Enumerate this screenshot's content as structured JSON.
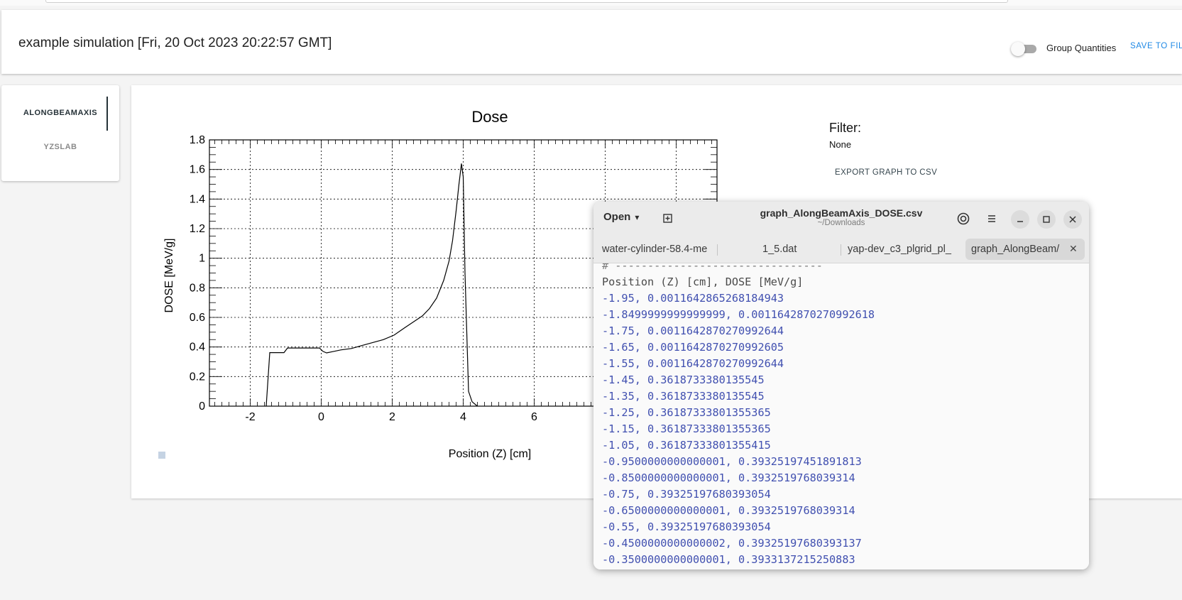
{
  "header": {
    "title": "example simulation [Fri, 20 Oct 2023 20:22:57 GMT]",
    "toggle_label": "Group Quantities",
    "save_label": "SAVE TO FILE"
  },
  "side_tabs": [
    {
      "label": "ALONGBEAMAXIS",
      "active": true
    },
    {
      "label": "YZSLAB",
      "active": false
    }
  ],
  "panel": {
    "filter_title": "Filter:",
    "filter_value": "None",
    "export_label": "EXPORT GRAPH TO CSV"
  },
  "chart_data": {
    "type": "line",
    "title": "Dose",
    "xlabel": "Position (Z) [cm]",
    "ylabel": "DOSE [MeV/g]",
    "xlim": [
      -3.15,
      11.15
    ],
    "ylim": [
      0,
      1.8
    ],
    "x_ticks": [
      "-2",
      "0",
      "2",
      "4",
      "6"
    ],
    "y_ticks": [
      "0",
      "0.2",
      "0.4",
      "0.6",
      "0.8",
      "1",
      "1.2",
      "1.4",
      "1.6",
      "1.8"
    ],
    "grid": true,
    "series": [
      {
        "x": [
          -1.55,
          -1.45,
          -1.05,
          -0.95,
          -0.05,
          0.05,
          0.15,
          0.35,
          0.55,
          0.85,
          1.15,
          1.45,
          1.75,
          2.05,
          2.35,
          2.6,
          2.85,
          3.05,
          3.25,
          3.45,
          3.6,
          3.7,
          3.8,
          3.88,
          3.95,
          4.0,
          4.05,
          4.15,
          4.25,
          4.4
        ],
        "y": [
          0.0012,
          0.3619,
          0.3619,
          0.3933,
          0.3933,
          0.37,
          0.36,
          0.37,
          0.38,
          0.39,
          0.41,
          0.43,
          0.45,
          0.48,
          0.53,
          0.57,
          0.61,
          0.66,
          0.73,
          0.85,
          0.98,
          1.12,
          1.32,
          1.5,
          1.64,
          1.55,
          0.9,
          0.1,
          0.03,
          0.0
        ]
      }
    ]
  },
  "editor": {
    "open_label": "Open",
    "title": "graph_AlongBeamAxis_DOSE.csv",
    "subtitle": "~/Downloads",
    "tabs": [
      "water-cylinder-58.4-me",
      "1_5.dat",
      "yap-dev_c3_plgrid_pl_",
      "graph_AlongBeam/"
    ],
    "lines": {
      "comment": "# --------------------------------",
      "header": "Position (Z) [cm], DOSE [MeV/g]",
      "rows": [
        "-1.95, 0.0011642865268184943",
        "-1.8499999999999999, 0.0011642870270992618",
        "-1.75, 0.0011642870270992644",
        "-1.65, 0.0011642870270992605",
        "-1.55, 0.0011642870270992644",
        "-1.45, 0.3618733380135545",
        "-1.35, 0.3618733380135545",
        "-1.25, 0.36187333801355365",
        "-1.15, 0.36187333801355365",
        "-1.05, 0.36187333801355415",
        "-0.9500000000000001, 0.39325197451891813",
        "-0.8500000000000001, 0.3932519768039314",
        "-0.75, 0.39325197680393054",
        "-0.6500000000000001, 0.3932519768039314",
        "-0.55, 0.39325197680393054",
        "-0.4500000000000002, 0.39325197680393137",
        "-0.3500000000000001, 0.3933137215250883"
      ]
    }
  },
  "colors": {
    "accent": "#1e88e5",
    "code_number": "#4150b0",
    "tab_active": "#263238"
  }
}
